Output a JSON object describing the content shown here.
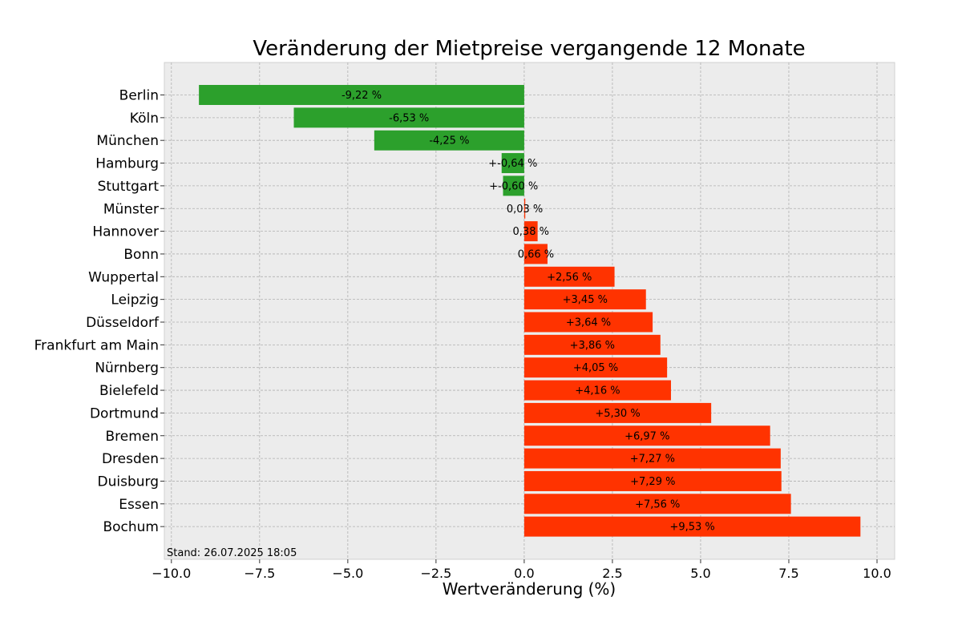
{
  "chart_data": {
    "type": "bar",
    "orientation": "horizontal",
    "title": "Veränderung der Mietpreise vergangende 12 Monate",
    "xlabel": "Wertveränderung (%)",
    "ylabel": "",
    "xlim": [
      -10.2,
      10.5
    ],
    "xticks": [
      -10.0,
      -7.5,
      -5.0,
      -2.5,
      0.0,
      2.5,
      5.0,
      7.5,
      10.0
    ],
    "xtick_labels": [
      "−10.0",
      "−7.5",
      "−5.0",
      "−2.5",
      "0.0",
      "2.5",
      "5.0",
      "7.5",
      "10.0"
    ],
    "grid": true,
    "categories": [
      "Berlin",
      "Köln",
      "München",
      "Hamburg",
      "Stuttgart",
      "Münster",
      "Hannover",
      "Bonn",
      "Wuppertal",
      "Leipzig",
      "Düsseldorf",
      "Frankfurt am Main",
      "Nürnberg",
      "Bielefeld",
      "Dortmund",
      "Bremen",
      "Dresden",
      "Duisburg",
      "Essen",
      "Bochum"
    ],
    "values": [
      -9.22,
      -6.53,
      -4.25,
      -0.64,
      -0.6,
      0.03,
      0.38,
      0.66,
      2.56,
      3.45,
      3.64,
      3.86,
      4.05,
      4.16,
      5.3,
      6.97,
      7.27,
      7.29,
      7.56,
      9.53
    ],
    "data_labels": [
      "-9,22 %",
      "-6,53 %",
      "-4,25 %",
      "+-0,64 %",
      "+-0,60 %",
      "0,03 %",
      "0,38 %",
      "0,66 %",
      "+2,56 %",
      "+3,45 %",
      "+3,64 %",
      "+3,86 %",
      "+4,05 %",
      "+4,16 %",
      "+5,30 %",
      "+6,97 %",
      "+7,27 %",
      "+7,29 %",
      "+7,56 %",
      "+9,53 %"
    ],
    "colors": {
      "negative": "#2ca02c",
      "positive": "#ff3300",
      "background": "#ececec",
      "grid": "#b0b0b0"
    },
    "annotation": "Stand: 26.07.2025 18:05"
  }
}
